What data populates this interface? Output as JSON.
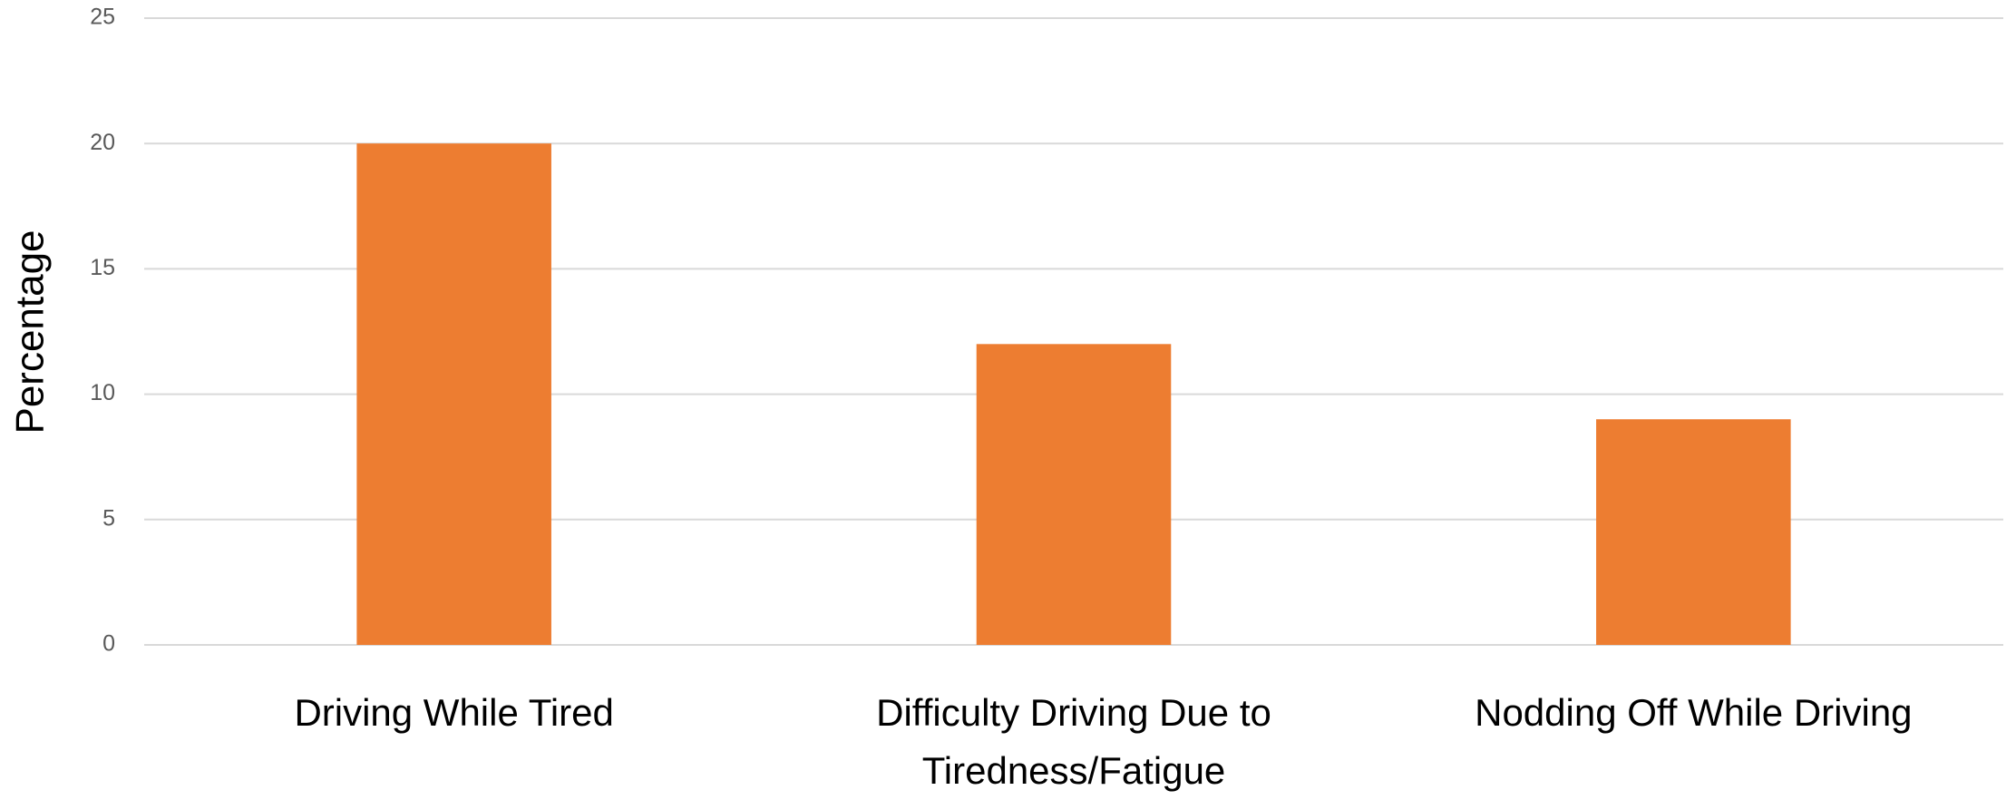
{
  "chart_data": {
    "type": "bar",
    "y_label": "Percentage",
    "categories": [
      "Driving While Tired",
      "Difficulty Driving Due to Tiredness/Fatigue",
      "Nodding Off While Driving"
    ],
    "values": [
      20,
      12,
      9
    ],
    "color": "#ed7d31",
    "ylim": [
      0,
      25
    ],
    "yticks": [
      0,
      5,
      10,
      15,
      20,
      25
    ],
    "grid": true
  }
}
